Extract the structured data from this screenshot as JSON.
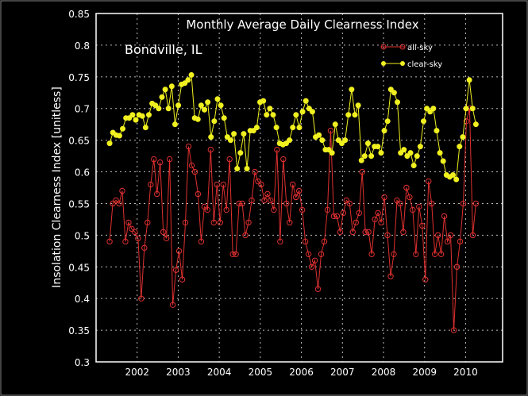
{
  "chart_data": {
    "type": "line",
    "title": "Monthly Average Daily Clearness Index",
    "annotation": "Bondville, IL",
    "xlabel": "",
    "ylabel": "Insolation Clearness Index [unitless]",
    "ylim": [
      0.3,
      0.85
    ],
    "xlim": [
      2001.0,
      2010.9
    ],
    "x_range_of_data": [
      2001.33,
      2010.25
    ],
    "yticks": [
      "0.3",
      "0.35",
      "0.4",
      "0.45",
      "0.5",
      "0.55",
      "0.6",
      "0.65",
      "0.7",
      "0.75",
      "0.8",
      "0.85"
    ],
    "xticks": [
      "2002",
      "2003",
      "2004",
      "2005",
      "2006",
      "2007",
      "2008",
      "2009",
      "2010"
    ],
    "grid": true,
    "legend_position": "top-right",
    "series": [
      {
        "name": "all-sky",
        "color": "#e03030",
        "marker": "open-circle",
        "values": [
          0.49,
          0.55,
          0.555,
          0.55,
          0.57,
          0.49,
          0.52,
          0.51,
          0.505,
          0.495,
          0.4,
          0.48,
          0.52,
          0.58,
          0.62,
          0.565,
          0.615,
          0.505,
          0.495,
          0.62,
          0.39,
          0.445,
          0.475,
          0.43,
          0.52,
          0.64,
          0.61,
          0.6,
          0.565,
          0.49,
          0.545,
          0.54,
          0.635,
          0.52,
          0.58,
          0.52,
          0.58,
          0.54,
          0.62,
          0.47,
          0.47,
          0.55,
          0.55,
          0.5,
          0.52,
          0.555,
          0.6,
          0.585,
          0.58,
          0.555,
          0.565,
          0.555,
          0.54,
          0.635,
          0.49,
          0.62,
          0.55,
          0.52,
          0.58,
          0.56,
          0.57,
          0.54,
          0.49,
          0.47,
          0.45,
          0.46,
          0.415,
          0.47,
          0.49,
          0.54,
          0.665,
          0.53,
          0.53,
          0.505,
          0.535,
          0.555,
          0.55,
          0.505,
          0.52,
          0.535,
          0.6,
          0.505,
          0.505,
          0.47,
          0.525,
          0.535,
          0.52,
          0.56,
          0.5,
          0.435,
          0.47,
          0.555,
          0.55,
          0.505,
          0.575,
          0.56,
          0.54,
          0.47,
          0.545,
          0.515,
          0.43,
          0.585,
          0.55,
          0.47,
          0.5,
          0.47,
          0.53,
          0.49,
          0.5,
          0.35,
          0.45,
          0.49,
          0.55,
          0.68,
          0.7,
          0.5,
          0.55
        ]
      },
      {
        "name": "clear-sky",
        "color": "#f0f020",
        "marker": "filled-circle",
        "values": [
          0.645,
          0.662,
          0.658,
          0.657,
          0.668,
          0.685,
          0.685,
          0.69,
          0.682,
          0.69,
          0.688,
          0.67,
          0.69,
          0.708,
          0.705,
          0.7,
          0.718,
          0.73,
          0.7,
          0.735,
          0.675,
          0.705,
          0.738,
          0.74,
          0.745,
          0.753,
          0.685,
          0.683,
          0.705,
          0.698,
          0.71,
          0.655,
          0.68,
          0.715,
          0.705,
          0.685,
          0.655,
          0.65,
          0.66,
          0.605,
          0.63,
          0.66,
          0.605,
          0.665,
          0.665,
          0.67,
          0.71,
          0.712,
          0.69,
          0.7,
          0.69,
          0.67,
          0.645,
          0.643,
          0.645,
          0.65,
          0.67,
          0.69,
          0.67,
          0.695,
          0.712,
          0.7,
          0.695,
          0.655,
          0.658,
          0.65,
          0.635,
          0.635,
          0.63,
          0.675,
          0.65,
          0.645,
          0.65,
          0.69,
          0.73,
          0.69,
          0.705,
          0.618,
          0.625,
          0.645,
          0.625,
          0.64,
          0.64,
          0.63,
          0.665,
          0.68,
          0.73,
          0.725,
          0.71,
          0.63,
          0.635,
          0.625,
          0.63,
          0.61,
          0.625,
          0.64,
          0.68,
          0.7,
          0.695,
          0.7,
          0.665,
          0.63,
          0.617,
          0.595,
          0.592,
          0.595,
          0.588,
          0.64,
          0.655,
          0.7,
          0.745,
          0.7,
          0.675
        ]
      }
    ]
  }
}
